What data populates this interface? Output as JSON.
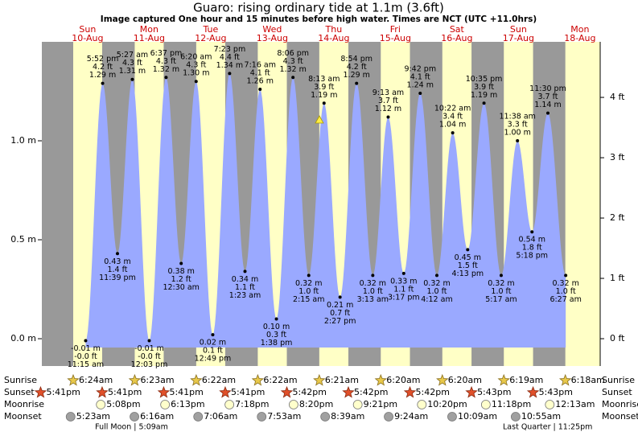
{
  "chart_data": {
    "type": "tide",
    "title": "Guaro: rising  ordinary tide at 1.1m (3.6ft)",
    "subtitle": "Image captured One hour and 15 minutes before high water. Times are NCT (UTC +11.0hrs)",
    "fill_color": "#9aa9ff",
    "night_color": "#999999",
    "day_color": "#ffffc6",
    "ylim": [
      -0.138,
      1.5
    ],
    "yticks": [
      {
        "value": 0,
        "label": "0.0 m"
      },
      {
        "value": 0.5,
        "label": "0.5 m"
      },
      {
        "value": 1,
        "label": "1.0 m"
      }
    ],
    "y2lim": [
      -0.453,
      4.921
    ],
    "y2ticks": [
      {
        "value": 0,
        "label": "0 ft"
      },
      {
        "value": 1,
        "label": "1 ft"
      },
      {
        "value": 2,
        "label": "2 ft"
      },
      {
        "value": 3,
        "label": "3 ft"
      },
      {
        "value": 4,
        "label": "4 ft"
      }
    ],
    "row_labels": [
      "Sunrise",
      "Sunset",
      "Moonrise",
      "Moonset"
    ],
    "prior_sunset": "5:41pm",
    "days": [
      {
        "name": "Sun",
        "date": "10-Aug",
        "sunrise": "6:24am",
        "sunset": "5:41pm",
        "moonrise": "5:08pm",
        "moonset": "5:23am",
        "tides": [
          {
            "time": "11:15 am",
            "ft": "-0.0 ft",
            "m": -0.01,
            "m_label": "-0.01 m"
          },
          {
            "time": "5:52 pm",
            "ft": "4.2 ft",
            "m": 1.29,
            "m_label": "1.29 m"
          },
          {
            "time": "11:39 pm",
            "ft": "1.4 ft",
            "m": 0.43,
            "m_label": "0.43 m"
          }
        ]
      },
      {
        "name": "Mon",
        "date": "11-Aug",
        "sunrise": "6:23am",
        "sunset": "5:41pm",
        "moonrise": "6:13pm",
        "moonset": "6:16am",
        "moon_phase": "Full Moon | 5:09am",
        "tides": [
          {
            "time": "5:27 am",
            "ft": "4.3 ft",
            "m": 1.31,
            "m_label": "1.31 m"
          },
          {
            "time": "12:03 pm",
            "ft": "-0.0 ft",
            "m": -0.01,
            "m_label": "-0.01 m"
          },
          {
            "time": "6:37 pm",
            "ft": "4.3 ft",
            "m": 1.32,
            "m_label": "1.32 m"
          }
        ]
      },
      {
        "name": "Tue",
        "date": "12-Aug",
        "sunrise": "6:22am",
        "sunset": "5:41pm",
        "moonrise": "7:18pm",
        "moonset": "7:06am",
        "tides": [
          {
            "time": "12:30 am",
            "ft": "1.2 ft",
            "m": 0.38,
            "m_label": "0.38 m"
          },
          {
            "time": "6:20 am",
            "ft": "4.3 ft",
            "m": 1.3,
            "m_label": "1.30 m"
          },
          {
            "time": "12:49 pm",
            "ft": "0.1 ft",
            "m": 0.02,
            "m_label": "0.02 m"
          },
          {
            "time": "7:23 pm",
            "ft": "4.4 ft",
            "m": 1.34,
            "m_label": "1.34 m"
          }
        ]
      },
      {
        "name": "Wed",
        "date": "13-Aug",
        "sunrise": "6:22am",
        "sunset": "5:42pm",
        "moonrise": "8:20pm",
        "moonset": "7:53am",
        "tides": [
          {
            "time": "1:23 am",
            "ft": "1.1 ft",
            "m": 0.34,
            "m_label": "0.34 m"
          },
          {
            "time": "7:16 am",
            "ft": "4.1 ft",
            "m": 1.26,
            "m_label": "1.26 m"
          },
          {
            "time": "1:38 pm",
            "ft": "0.3 ft",
            "m": 0.1,
            "m_label": "0.10 m"
          },
          {
            "time": "8:06 pm",
            "ft": "4.3 ft",
            "m": 1.32,
            "m_label": "1.32 m"
          }
        ]
      },
      {
        "name": "Thu",
        "date": "14-Aug",
        "sunrise": "6:21am",
        "sunset": "5:42pm",
        "moonrise": "9:21pm",
        "moonset": "8:39am",
        "tides": [
          {
            "time": "2:15 am",
            "ft": "1.0 ft",
            "m": 0.32,
            "m_label": "0.32 m"
          },
          {
            "time": "8:13 am",
            "ft": "3.9 ft",
            "m": 1.19,
            "m_label": "1.19 m"
          },
          {
            "time": "2:27 pm",
            "ft": "0.7 ft",
            "m": 0.21,
            "m_label": "0.21 m"
          },
          {
            "time": "8:54 pm",
            "ft": "4.2 ft",
            "m": 1.29,
            "m_label": "1.29 m"
          }
        ]
      },
      {
        "name": "Fri",
        "date": "15-Aug",
        "sunrise": "6:20am",
        "sunset": "5:42pm",
        "moonrise": "10:20pm",
        "moonset": "9:24am",
        "tides": [
          {
            "time": "3:13 am",
            "ft": "1.0 ft",
            "m": 0.32,
            "m_label": "0.32 m"
          },
          {
            "time": "9:13 am",
            "ft": "3.7 ft",
            "m": 1.12,
            "m_label": "1.12 m"
          },
          {
            "time": "3:17 pm",
            "ft": "1.1 ft",
            "m": 0.33,
            "m_label": "0.33 m"
          },
          {
            "time": "9:42 pm",
            "ft": "4.1 ft",
            "m": 1.24,
            "m_label": "1.24 m"
          }
        ]
      },
      {
        "name": "Sat",
        "date": "16-Aug",
        "sunrise": "6:20am",
        "sunset": "5:43pm",
        "moonrise": "11:18pm",
        "moonset": "10:09am",
        "tides": [
          {
            "time": "4:12 am",
            "ft": "1.0 ft",
            "m": 0.32,
            "m_label": "0.32 m"
          },
          {
            "time": "10:22 am",
            "ft": "3.4 ft",
            "m": 1.04,
            "m_label": "1.04 m"
          },
          {
            "time": "4:13 pm",
            "ft": "1.5 ft",
            "m": 0.45,
            "m_label": "0.45 m"
          },
          {
            "time": "10:35 pm",
            "ft": "3.9 ft",
            "m": 1.19,
            "m_label": "1.19 m"
          }
        ]
      },
      {
        "name": "Sun",
        "date": "17-Aug",
        "sunrise": "6:19am",
        "sunset": "5:43pm",
        "moonset": "10:55am",
        "moon_phase": "Last Quarter | 11:25pm",
        "tides": [
          {
            "time": "5:17 am",
            "ft": "1.0 ft",
            "m": 0.32,
            "m_label": "0.32 m"
          },
          {
            "time": "11:38 am",
            "ft": "3.3 ft",
            "m": 1.0,
            "m_label": "1.00 m"
          },
          {
            "time": "5:18 pm",
            "ft": "1.8 ft",
            "m": 0.54,
            "m_label": "0.54 m"
          },
          {
            "time": "11:30 pm",
            "ft": "3.7 ft",
            "m": 1.14,
            "m_label": "1.14 m"
          }
        ]
      },
      {
        "name": "Mon",
        "date": "18-Aug",
        "sunrise": "6:18am",
        "moonrise": "12:13am",
        "tides": [
          {
            "time": "6:27 am",
            "ft": "1.0 ft",
            "m": 0.32,
            "m_label": "0.32 m"
          }
        ]
      }
    ]
  }
}
